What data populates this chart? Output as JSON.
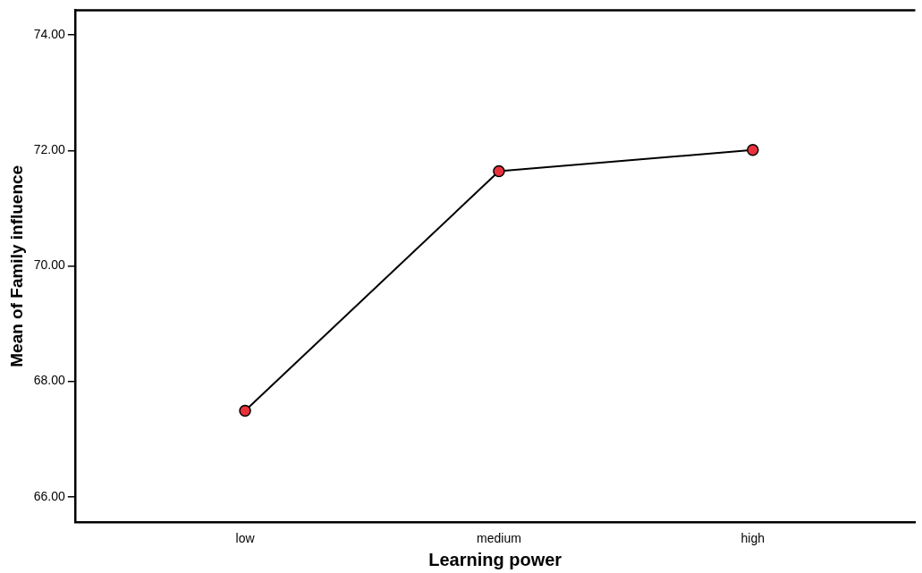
{
  "chart_data": {
    "type": "line",
    "xlabel": "Learning power",
    "ylabel": "Mean of Family influence",
    "categories": [
      "low",
      "medium",
      "high"
    ],
    "series": [
      {
        "color": "#e8323c",
        "values": [
          67.49,
          71.64,
          72.01
        ]
      }
    ],
    "ylim": [
      65.56,
      74.43
    ],
    "yticks": [
      {
        "value": 66,
        "label": "66.00"
      },
      {
        "value": 68,
        "label": "68.00"
      },
      {
        "value": 70,
        "label": "70.00"
      },
      {
        "value": 72,
        "label": "72.00"
      },
      {
        "value": 74,
        "label": "74.00"
      }
    ],
    "marker": "circle",
    "line_style": "solid",
    "grid": false,
    "legend": false
  }
}
